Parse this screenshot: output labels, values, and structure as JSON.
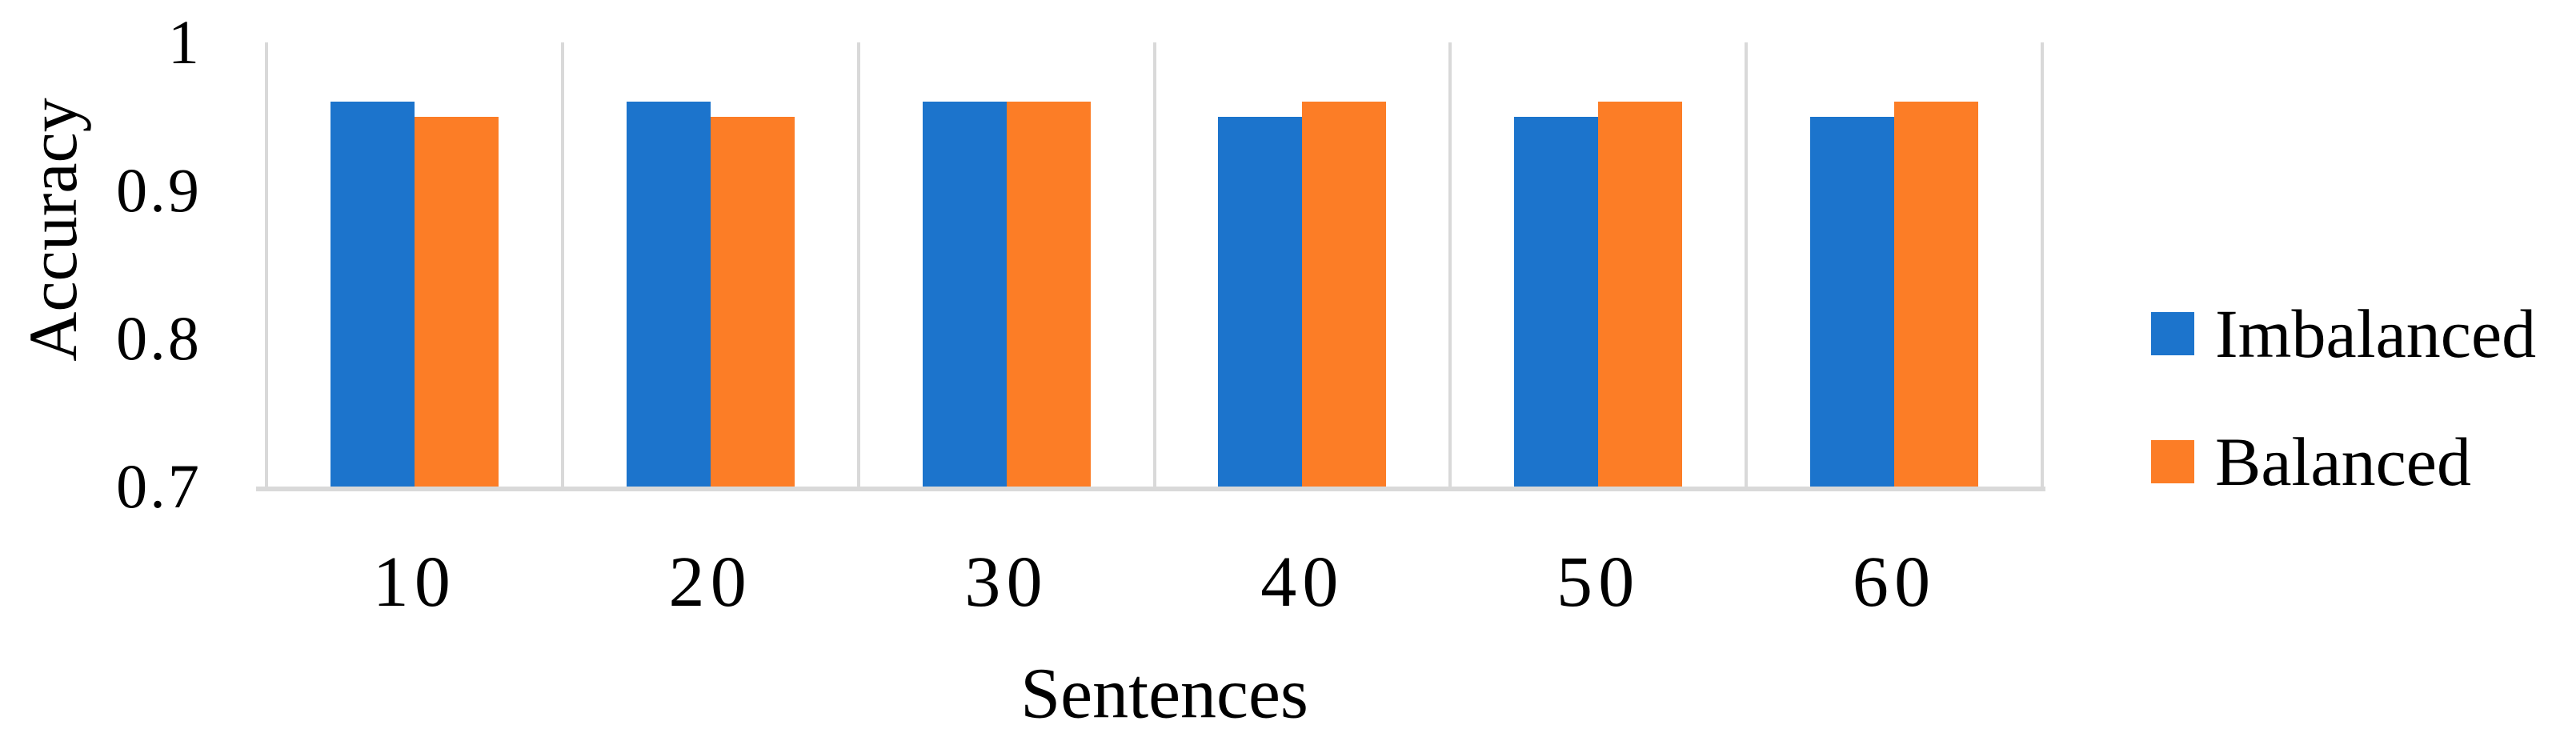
{
  "chart_data": {
    "type": "bar",
    "title": "",
    "ylabel": "Accuracy",
    "xlabel": "Sentences",
    "categories": [
      "10",
      "20",
      "30",
      "40",
      "50",
      "60"
    ],
    "series": [
      {
        "name": "Imbalanced",
        "color": "#1C74CC",
        "values": [
          0.96,
          0.96,
          0.96,
          0.95,
          0.95,
          0.95
        ]
      },
      {
        "name": "Balanced",
        "color": "#FC7D26",
        "values": [
          0.95,
          0.95,
          0.96,
          0.96,
          0.96,
          0.96
        ]
      }
    ],
    "y_axis": {
      "min": 0.7,
      "max": 1.0,
      "ticks": [
        1,
        0.9,
        0.8,
        0.7
      ],
      "tick_labels": [
        "1",
        "0.9",
        "0.8",
        "0.7"
      ]
    },
    "x_axis": {
      "ticks": [
        "10",
        "20",
        "30",
        "40",
        "50",
        "60"
      ]
    },
    "legend_position": "right",
    "grid": "vertical lines at category boundaries, no horizontal gridlines",
    "gridline_color": "#D9D9D9",
    "background": "#FFFFFF",
    "text_color": "#000000"
  }
}
